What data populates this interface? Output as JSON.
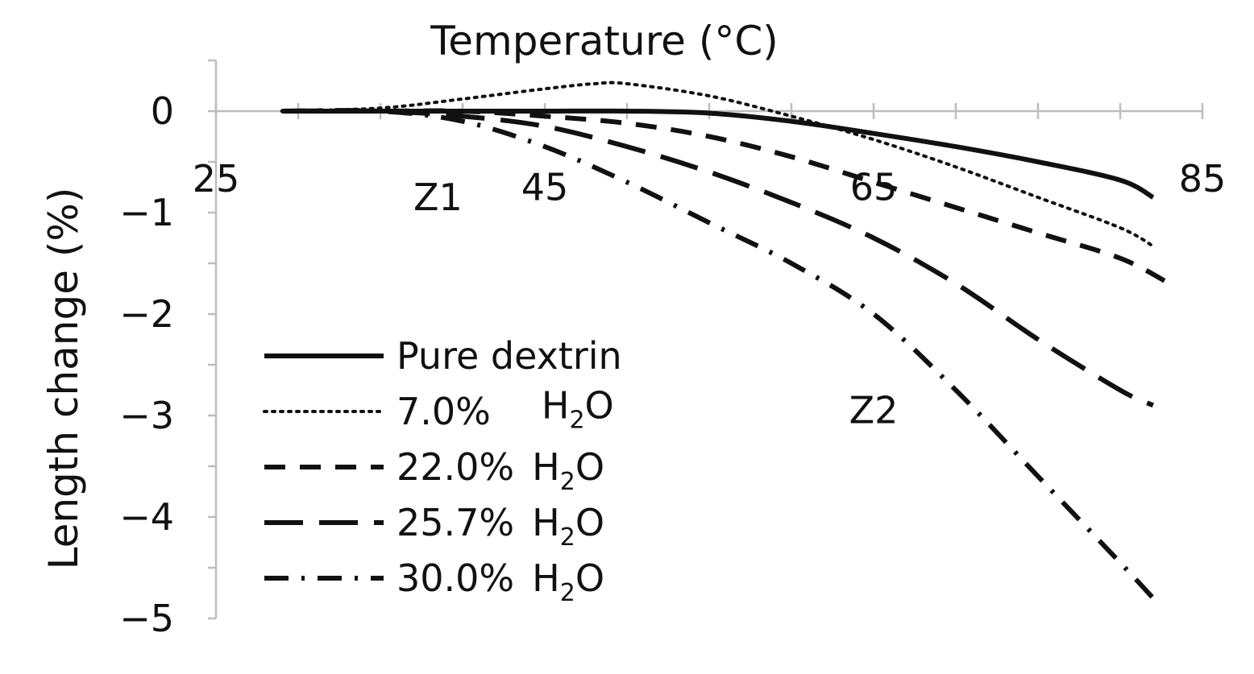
{
  "chart_data": {
    "type": "line",
    "xlabel": "Temperature (°C)",
    "ylabel": "Length change (%)",
    "xlim": [
      25,
      85
    ],
    "ylim": [
      -5,
      0.5
    ],
    "x_axis_position": "top (crosses y = 0)",
    "x_ticks": [
      25,
      45,
      65,
      85
    ],
    "x_tick_labels": [
      "25",
      "45",
      "65",
      "85"
    ],
    "y_ticks": [
      0,
      -1,
      -2,
      -3,
      -4,
      -5
    ],
    "y_tick_labels": [
      "0",
      "−1",
      "−2",
      "−3",
      "−4",
      "−5"
    ],
    "grid": false,
    "legend_position": "bottom-left",
    "series": [
      {
        "name": "Pure dextrin",
        "label_main": "Pure dextrin",
        "label_sub": "",
        "label_tail": "",
        "style": "solid",
        "x": [
          29,
          35,
          40,
          45,
          50,
          55,
          60,
          65,
          70,
          75,
          80,
          82
        ],
        "y": [
          0,
          0,
          0,
          0,
          0,
          -0.02,
          -0.1,
          -0.22,
          -0.35,
          -0.5,
          -0.68,
          -0.85
        ]
      },
      {
        "name": "7.0% H2O",
        "label_main": "7.0%",
        "label_sub": "",
        "label_tail": "",
        "style": "dotted",
        "x": [
          29,
          35,
          40,
          45,
          48,
          50,
          55,
          60,
          65,
          70,
          75,
          80,
          82
        ],
        "y": [
          0,
          0.03,
          0.12,
          0.22,
          0.27,
          0.27,
          0.15,
          -0.05,
          -0.28,
          -0.55,
          -0.85,
          -1.15,
          -1.33
        ]
      },
      {
        "name": "22.0% H2O",
        "label_main": "22.0%",
        "label_sub": "2",
        "label_tail": "",
        "style": "short-dash",
        "x": [
          29,
          35,
          40,
          45,
          50,
          55,
          60,
          65,
          70,
          75,
          80,
          83
        ],
        "y": [
          0,
          0,
          0,
          -0.05,
          -0.12,
          -0.25,
          -0.45,
          -0.7,
          -0.95,
          -1.2,
          -1.45,
          -1.7
        ]
      },
      {
        "name": "25.7% H2O",
        "label_main": "25.7%",
        "label_sub": "2",
        "label_tail": "",
        "style": "long-dash",
        "x": [
          29,
          35,
          40,
          45,
          50,
          55,
          60,
          65,
          70,
          75,
          80,
          82
        ],
        "y": [
          0,
          0,
          -0.05,
          -0.15,
          -0.35,
          -0.6,
          -0.9,
          -1.25,
          -1.7,
          -2.25,
          -2.75,
          -2.9
        ]
      },
      {
        "name": "30.0% H2O",
        "label_main": "30.0%",
        "label_sub": "2",
        "label_tail": "",
        "style": "dash-dot",
        "x": [
          29,
          35,
          40,
          45,
          50,
          55,
          60,
          65,
          70,
          75,
          80,
          82
        ],
        "y": [
          0,
          0,
          -0.1,
          -0.35,
          -0.7,
          -1.1,
          -1.5,
          -2.0,
          -2.75,
          -3.6,
          -4.45,
          -4.8
        ]
      }
    ],
    "annotations": [
      {
        "text": "Z1",
        "x": 38.5,
        "y": -0.85
      },
      {
        "text": "H",
        "sub": "2",
        "tail": "O",
        "x": 47,
        "y": -2.9
      },
      {
        "text": "Z2",
        "x": 65,
        "y": -2.95
      },
      {
        "text": "65",
        "x": 65,
        "y": -0.75
      },
      {
        "text": "45",
        "x": 45,
        "y": -0.75
      }
    ]
  }
}
